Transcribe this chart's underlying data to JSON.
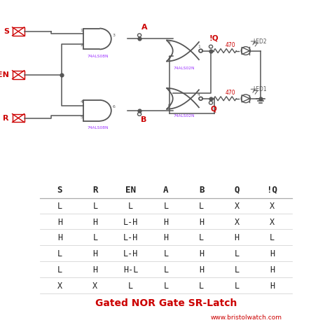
{
  "title": "Gated NOR Gate SR-Latch",
  "website": "www.bristolwatch.com",
  "title_color": "#cc0000",
  "website_color": "#cc0000",
  "table_headers": [
    "S",
    "R",
    "EN",
    "A",
    "B",
    "Q",
    "!Q"
  ],
  "table_rows": [
    [
      "L",
      "L",
      "L",
      "L",
      "L",
      "X",
      "X"
    ],
    [
      "H",
      "H",
      "L-H",
      "H",
      "H",
      "X",
      "X"
    ],
    [
      "H",
      "L",
      "L-H",
      "H",
      "L",
      "H",
      "L"
    ],
    [
      "L",
      "H",
      "L-H",
      "L",
      "H",
      "L",
      "H"
    ],
    [
      "L",
      "H",
      "H-L",
      "L",
      "H",
      "L",
      "H"
    ],
    [
      "X",
      "X",
      "L",
      "L",
      "L",
      "L",
      "H"
    ]
  ],
  "bg_color": "#ffffff",
  "line_color": "#555555",
  "text_color": "#222222",
  "red_color": "#cc0000",
  "purple_color": "#9B30FF",
  "circuit_bg": "#ffffff"
}
